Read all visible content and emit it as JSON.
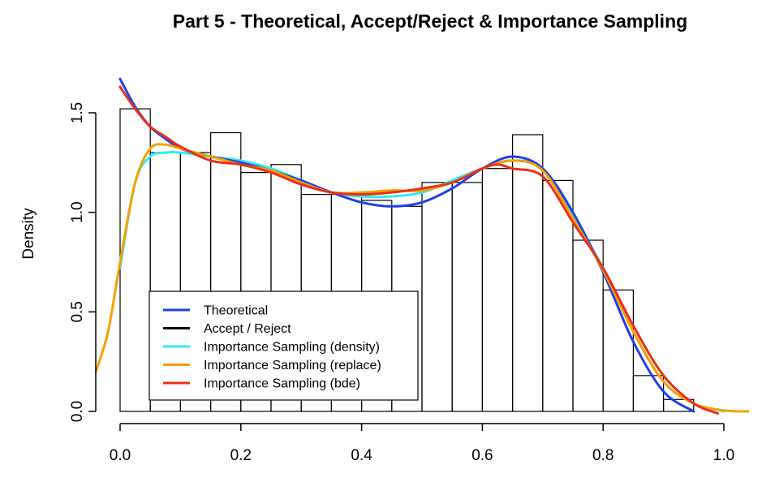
{
  "chart_data": {
    "type": "histogram",
    "title": "Part 5 - Theoretical, Accept/Reject & Importance Sampling",
    "ylabel": "Density",
    "xlim": [
      0.0,
      1.0
    ],
    "ylim": [
      0.0,
      1.5
    ],
    "x_ticks": [
      "0.0",
      "0.2",
      "0.4",
      "0.6",
      "0.8",
      "1.0"
    ],
    "y_ticks": [
      "0.0",
      "0.5",
      "1.0",
      "1.5"
    ],
    "grid": false,
    "legend_position": "bottom-left",
    "histogram": {
      "bin_width": 0.05,
      "bin_starts": [
        0.0,
        0.05,
        0.1,
        0.15,
        0.2,
        0.25,
        0.3,
        0.35,
        0.4,
        0.45,
        0.5,
        0.55,
        0.6,
        0.65,
        0.7,
        0.75,
        0.8,
        0.85,
        0.9,
        0.95
      ],
      "densities": [
        1.52,
        1.3,
        1.3,
        1.4,
        1.2,
        1.24,
        1.09,
        1.09,
        1.06,
        1.03,
        1.15,
        1.15,
        1.22,
        1.39,
        1.16,
        0.86,
        0.61,
        0.18,
        0.06,
        0.0
      ]
    },
    "series": [
      {
        "name": "Theoretical",
        "color": "#1f3fe8",
        "x": [
          0.0,
          0.025,
          0.05,
          0.075,
          0.1,
          0.125,
          0.15,
          0.2,
          0.25,
          0.3,
          0.35,
          0.4,
          0.45,
          0.5,
          0.55,
          0.6,
          0.65,
          0.7,
          0.75,
          0.8,
          0.85,
          0.9,
          0.95
        ],
        "y": [
          1.67,
          1.53,
          1.43,
          1.37,
          1.32,
          1.3,
          1.28,
          1.25,
          1.21,
          1.16,
          1.1,
          1.05,
          1.03,
          1.05,
          1.12,
          1.22,
          1.28,
          1.22,
          1.0,
          0.7,
          0.35,
          0.1,
          0.0
        ]
      },
      {
        "name": "Accept / Reject",
        "color": "#000000",
        "x": [],
        "y": []
      },
      {
        "name": "Importance Sampling (density)",
        "color": "#33eaea",
        "x": [
          0.0,
          0.025,
          0.05,
          0.075,
          0.1,
          0.15,
          0.2,
          0.25,
          0.3,
          0.35,
          0.4,
          0.45,
          0.5,
          0.55,
          0.6,
          0.65,
          0.7,
          0.75,
          0.8,
          0.85,
          0.9,
          0.95,
          1.0
        ],
        "y": [
          0.72,
          1.15,
          1.28,
          1.3,
          1.3,
          1.28,
          1.26,
          1.22,
          1.16,
          1.1,
          1.08,
          1.08,
          1.1,
          1.16,
          1.22,
          1.26,
          1.22,
          0.98,
          0.72,
          0.4,
          0.15,
          0.04,
          0.0
        ]
      },
      {
        "name": "Importance Sampling (replace)",
        "color": "#f5a000",
        "x": [
          -0.04,
          -0.02,
          0.0,
          0.025,
          0.05,
          0.075,
          0.1,
          0.15,
          0.2,
          0.25,
          0.3,
          0.35,
          0.4,
          0.45,
          0.5,
          0.55,
          0.6,
          0.65,
          0.7,
          0.75,
          0.8,
          0.85,
          0.9,
          0.95,
          1.0,
          1.04
        ],
        "y": [
          0.2,
          0.4,
          0.75,
          1.15,
          1.32,
          1.34,
          1.32,
          1.28,
          1.24,
          1.21,
          1.15,
          1.1,
          1.1,
          1.11,
          1.11,
          1.15,
          1.22,
          1.26,
          1.21,
          0.97,
          0.71,
          0.4,
          0.15,
          0.04,
          0.005,
          0.0
        ]
      },
      {
        "name": "Importance Sampling (bde)",
        "color": "#e8301a",
        "x": [
          0.0,
          0.025,
          0.05,
          0.075,
          0.1,
          0.15,
          0.2,
          0.25,
          0.3,
          0.35,
          0.4,
          0.45,
          0.5,
          0.55,
          0.6,
          0.625,
          0.65,
          0.7,
          0.75,
          0.8,
          0.85,
          0.9,
          0.95,
          0.99
        ],
        "y": [
          1.63,
          1.52,
          1.43,
          1.38,
          1.33,
          1.26,
          1.24,
          1.2,
          1.14,
          1.1,
          1.09,
          1.1,
          1.12,
          1.15,
          1.22,
          1.24,
          1.22,
          1.18,
          0.95,
          0.72,
          0.43,
          0.18,
          0.04,
          -0.01
        ]
      }
    ]
  }
}
